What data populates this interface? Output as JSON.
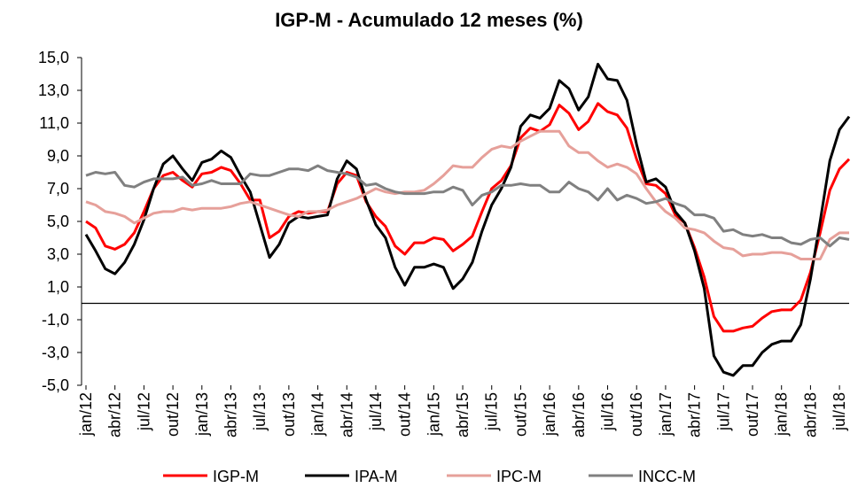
{
  "chart_data": {
    "type": "line",
    "title": "IGP-M - Acumulado  12 meses (%)",
    "categories": [
      "jan/12",
      null,
      null,
      "abr/12",
      null,
      null,
      "jul/12",
      null,
      null,
      "out/12",
      null,
      null,
      "jan/13",
      null,
      null,
      "abr/13",
      null,
      null,
      "jul/13",
      null,
      null,
      "out/13",
      null,
      null,
      "jan/14",
      null,
      null,
      "abr/14",
      null,
      null,
      "jul/14",
      null,
      null,
      "out/14",
      null,
      null,
      "jan/15",
      null,
      null,
      "abr/15",
      null,
      null,
      "jul/15",
      null,
      null,
      "out/15",
      null,
      null,
      "jan/16",
      null,
      null,
      "abr/16",
      null,
      null,
      "jul/16",
      null,
      null,
      "out/16",
      null,
      null,
      "jan/17",
      null,
      null,
      "abr/17",
      null,
      null,
      "jul/17",
      null,
      null,
      "out/17",
      null,
      null,
      "jan/18",
      null,
      null,
      "abr/18",
      null,
      null,
      "jul/18",
      null
    ],
    "series": [
      {
        "name": "IGP-M",
        "color": "#ff0000",
        "values": [
          5.0,
          4.6,
          3.5,
          3.3,
          3.6,
          4.3,
          5.6,
          7.0,
          7.8,
          8.0,
          7.5,
          7.1,
          7.9,
          8.0,
          8.3,
          8.1,
          7.3,
          6.3,
          6.3,
          4.0,
          4.4,
          5.3,
          5.6,
          5.5,
          5.6,
          5.6,
          7.3,
          8.0,
          7.8,
          6.2,
          5.3,
          4.7,
          3.5,
          3.0,
          3.7,
          3.7,
          4.0,
          3.9,
          3.2,
          3.6,
          4.1,
          5.6,
          7.0,
          7.5,
          8.4,
          10.1,
          10.7,
          10.5,
          10.9,
          12.1,
          11.6,
          10.6,
          11.1,
          12.2,
          11.7,
          11.5,
          10.7,
          8.8,
          7.3,
          7.2,
          6.7,
          5.4,
          4.9,
          3.4,
          1.6,
          -0.8,
          -1.7,
          -1.7,
          -1.5,
          -1.4,
          -0.9,
          -0.5,
          -0.4,
          -0.4,
          0.2,
          1.9,
          4.3,
          6.9,
          8.2,
          8.8
        ]
      },
      {
        "name": "IPA-M",
        "color": "#000000",
        "values": [
          4.2,
          3.2,
          2.1,
          1.8,
          2.5,
          3.6,
          5.1,
          7.0,
          8.5,
          9.0,
          8.2,
          7.5,
          8.6,
          8.8,
          9.3,
          8.9,
          7.8,
          6.8,
          4.8,
          2.8,
          3.6,
          4.9,
          5.3,
          5.2,
          5.3,
          5.4,
          7.6,
          8.7,
          8.2,
          6.3,
          4.8,
          4.0,
          2.2,
          1.1,
          2.2,
          2.2,
          2.4,
          2.2,
          0.9,
          1.5,
          2.5,
          4.4,
          6.0,
          7.0,
          8.3,
          10.8,
          11.5,
          11.3,
          11.9,
          13.6,
          13.1,
          11.8,
          12.6,
          14.6,
          13.7,
          13.6,
          12.4,
          9.7,
          7.4,
          7.6,
          7.1,
          5.6,
          4.9,
          3.2,
          0.9,
          -3.2,
          -4.2,
          -4.4,
          -3.8,
          -3.8,
          -3.0,
          -2.5,
          -2.3,
          -2.3,
          -1.3,
          1.5,
          5.0,
          8.7,
          10.6,
          11.4
        ]
      },
      {
        "name": "IPC-M",
        "color": "#e6a09a",
        "values": [
          6.2,
          6.0,
          5.6,
          5.5,
          5.3,
          4.9,
          5.2,
          5.5,
          5.6,
          5.6,
          5.8,
          5.7,
          5.8,
          5.8,
          5.8,
          5.9,
          6.1,
          6.2,
          6.0,
          5.8,
          5.6,
          5.4,
          5.3,
          5.6,
          5.6,
          5.7,
          6.0,
          6.2,
          6.4,
          6.7,
          7.0,
          6.8,
          6.7,
          6.8,
          6.8,
          6.9,
          7.3,
          7.8,
          8.4,
          8.3,
          8.3,
          8.9,
          9.4,
          9.6,
          9.5,
          9.9,
          10.2,
          10.5,
          10.5,
          10.5,
          9.6,
          9.2,
          9.2,
          8.7,
          8.3,
          8.5,
          8.3,
          7.9,
          7.0,
          6.2,
          5.6,
          5.2,
          4.6,
          4.5,
          4.3,
          3.8,
          3.4,
          3.3,
          2.9,
          3.0,
          3.0,
          3.1,
          3.1,
          3.0,
          2.7,
          2.7,
          2.7,
          3.9,
          4.3,
          4.3
        ]
      },
      {
        "name": "INCC-M",
        "color": "#808080",
        "values": [
          7.8,
          8.0,
          7.9,
          8.0,
          7.2,
          7.1,
          7.4,
          7.6,
          7.6,
          7.6,
          7.7,
          7.2,
          7.3,
          7.5,
          7.3,
          7.3,
          7.3,
          7.9,
          7.8,
          7.8,
          8.0,
          8.2,
          8.2,
          8.1,
          8.4,
          8.1,
          8.0,
          7.9,
          7.7,
          7.2,
          7.3,
          7.0,
          6.8,
          6.7,
          6.7,
          6.7,
          6.8,
          6.8,
          7.1,
          6.9,
          6.0,
          6.6,
          6.8,
          7.2,
          7.2,
          7.3,
          7.2,
          7.2,
          6.8,
          6.8,
          7.4,
          7.0,
          6.8,
          6.3,
          7.0,
          6.3,
          6.6,
          6.4,
          6.1,
          6.2,
          6.4,
          6.1,
          5.9,
          5.4,
          5.4,
          5.2,
          4.4,
          4.5,
          4.2,
          4.1,
          4.2,
          4.0,
          4.0,
          3.7,
          3.6,
          3.9,
          4.0,
          3.5,
          4.0,
          3.9
        ]
      }
    ],
    "ylim": [
      -5,
      15
    ],
    "yticks": [
      {
        "value": -5,
        "label": "-5,0"
      },
      {
        "value": -3,
        "label": "-3,0"
      },
      {
        "value": -1,
        "label": "-1,0"
      },
      {
        "value": 1,
        "label": "1,0"
      },
      {
        "value": 3,
        "label": "3,0"
      },
      {
        "value": 5,
        "label": "5,0"
      },
      {
        "value": 7,
        "label": "7,0"
      },
      {
        "value": 9,
        "label": "9,0"
      },
      {
        "value": 11,
        "label": "11,0"
      },
      {
        "value": 13,
        "label": "13,0"
      },
      {
        "value": 15,
        "label": "15,0"
      }
    ],
    "legend": "bottom"
  }
}
